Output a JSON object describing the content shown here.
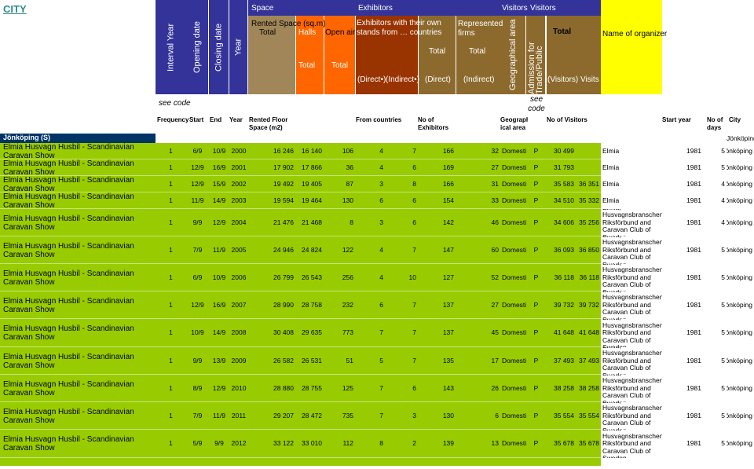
{
  "title": "CITY",
  "header": {
    "interval_year": "Interval Year",
    "opening_date": "Opening date",
    "closing_date": "Closing date",
    "year": "Year",
    "space": "Space",
    "exhibitors": "Exhibitors",
    "visitors_1": "Visitors",
    "visitors_2": "Visitors",
    "rented_space": "Rented Space (sq.m)",
    "rented_total": "Total",
    "halls": "Halls",
    "halls_total": "Total",
    "open_air": "Open air",
    "open_air_total": "Total",
    "own_stands": "Exhibitors with their own stands from … countries",
    "direct_dot": "(Direct•)",
    "indirect_dot": "(Indirect•)",
    "exh_total": "Total",
    "exh_direct": "(Direct)",
    "represented": "Represented firms",
    "repr_total": "Total",
    "repr_indirect": "(Indirect)",
    "geo_area": "Geographical area",
    "admission": "Admission for Trade/Public",
    "vis_total": "Total",
    "vis_visitors": "(Visitors)",
    "visits": "Visits",
    "organizer": "Name of organizer"
  },
  "see_code": [
    "see code",
    "see code"
  ],
  "subheader": [
    "Frequency",
    "Start",
    "End",
    "Year",
    "Rented Floor Space (m2)",
    "From countries",
    "No of Exhibitors",
    "Geograph ical area",
    "No of Visitors",
    "Start year",
    "No of days",
    "City"
  ],
  "group": {
    "label": "Jönköping (S)",
    "city": "Jönköping"
  },
  "rows": [
    [
      "Elmia Husvagn Husbil - Scandinavian Caravan Show",
      "1",
      "6/9",
      "10/9",
      "2000",
      "16 246",
      "16 140",
      "106",
      "4",
      "7",
      "166",
      "32",
      "Domestic",
      "P",
      "30 499",
      null,
      "Elmia",
      "1981",
      "5",
      "Jönköping"
    ],
    [
      "Elmia Husvagn Husbil - Scandinavian Caravan Show",
      "1",
      "12/9",
      "16/9",
      "2001",
      "17 902",
      "17 866",
      "36",
      "4",
      "6",
      "169",
      "27",
      "Domestic",
      "P",
      "31 793",
      null,
      "Elmia",
      "1981",
      "5",
      "Jönköping"
    ],
    [
      "Elmia Husvagn Husbil - Scandinavian Caravan Show",
      "1",
      "12/9",
      "15/9",
      "2002",
      "19 492",
      "19 405",
      "87",
      "3",
      "8",
      "166",
      "31",
      "Domestic",
      "P",
      "35 583",
      "36 351",
      "Elmia",
      "1981",
      "4",
      "Jönköping"
    ],
    [
      "Elmia Husvagn Husbil - Scandinavian Caravan Show",
      "1",
      "11/9",
      "14/9",
      "2003",
      "19 594",
      "19 464",
      "130",
      "6",
      "6",
      "154",
      "33",
      "Domestic",
      "P",
      "34 510",
      "35 332",
      "Elmia",
      "1981",
      "4",
      "Jönköping"
    ],
    [
      "Elmia Husvagn Husbil - Scandinavian Caravan Show",
      "1",
      "9/9",
      "12/9",
      "2004",
      "21 476",
      "21 468",
      "8",
      "3",
      "6",
      "142",
      "46",
      "Domestic",
      "P",
      "34 606",
      "35 256",
      "Elmia, Husvagnsbranschens Riksförbund and Caravan Club of Sweden",
      "1981",
      "4",
      "Jönköping"
    ],
    [
      "Elmia Husvagn Husbil - Scandinavian Caravan Show",
      "1",
      "7/9",
      "11/9",
      "2005",
      "24 946",
      "24 824",
      "122",
      "4",
      "7",
      "147",
      "60",
      "Domestic",
      "P",
      "36 093",
      "36 850",
      "Elmia, Husvagnsbranschens Riksförbund and Caravan Club of Sweden",
      "1981",
      "5",
      "Jönköping"
    ],
    [
      "Elmia Husvagn Husbil - Scandinavian Caravan Show",
      "1",
      "6/9",
      "10/9",
      "2006",
      "26 799",
      "26 543",
      "256",
      "4",
      "10",
      "127",
      "52",
      "Domestic",
      "P",
      "36 118",
      "36 118",
      "Elmia, Husvagnsbranschens Riksförbund and Caravan Club of Sweden",
      "1981",
      "5",
      "Jönköping"
    ],
    [
      "Elmia Husvagn Husbil - Scandinavian Caravan Show",
      "1",
      "12/9",
      "16/9",
      "2007",
      "28 990",
      "28 758",
      "232",
      "6",
      "7",
      "137",
      "27",
      "Domestic",
      "P",
      "39 732",
      "39 732",
      "Elmia, Husvagnsbranschens Riksförbund and Caravan Club of Sweden",
      "1981",
      "5",
      "Jönköping"
    ],
    [
      "Elmia Husvagn Husbil - Scandinavian Caravan Show",
      "1",
      "10/9",
      "14/9",
      "2008",
      "30 408",
      "29 635",
      "773",
      "7",
      "7",
      "137",
      "45",
      "Domestic",
      "P",
      "41 648",
      "41 648",
      "Elmia, Husvagnsbranschens Riksförbund and Caravan Club of Sweden",
      "1981",
      "5",
      "Jönköping"
    ],
    [
      "Elmia Husvagn Husbil - Scandinavian Caravan Show",
      "1",
      "9/9",
      "13/9",
      "2009",
      "26 582",
      "26 531",
      "51",
      "5",
      "7",
      "135",
      "17",
      "Domestic",
      "P",
      "37 493",
      "37 493",
      "Elmia, Husvagnsbranschens Riksförbund and Caravan Club of Sweden",
      "1981",
      "5",
      "Jönköping"
    ],
    [
      "Elmia Husvagn Husbil - Scandinavian Caravan Show",
      "1",
      "8/9",
      "12/9",
      "2010",
      "28 880",
      "28 755",
      "125",
      "7",
      "6",
      "143",
      "26",
      "Domestic",
      "P",
      "38 258",
      "38 258",
      "Elmia, Husvagnsbranschens Riksförbund and Caravan Club of Sweden",
      "1981",
      "5",
      "Jönköping"
    ],
    [
      "Elmia Husvagn Husbil - Scandinavian Caravan Show",
      "1",
      "7/9",
      "11/9",
      "2011",
      "29 207",
      "28 472",
      "735",
      "7",
      "3",
      "130",
      "6",
      "Domestic",
      "P",
      "35 554",
      "35 554",
      "Elmia, Husvagnsbranschens Riksförbund and Caravan Club of Sweden",
      "1981",
      "5",
      "Jönköping"
    ],
    [
      "Elmia Husvagn Husbil - Scandinavian Caravan Show",
      "1",
      "5/9",
      "9/9",
      "2012",
      "33 122",
      "33 010",
      "112",
      "8",
      "2",
      "139",
      "13",
      "Domestic",
      "P",
      "35 678",
      "35 678",
      "Elmia, Husvagnsbranschens Riksförbund and Caravan Club of Sweden",
      "1981",
      "5",
      "Jönköping"
    ]
  ]
}
